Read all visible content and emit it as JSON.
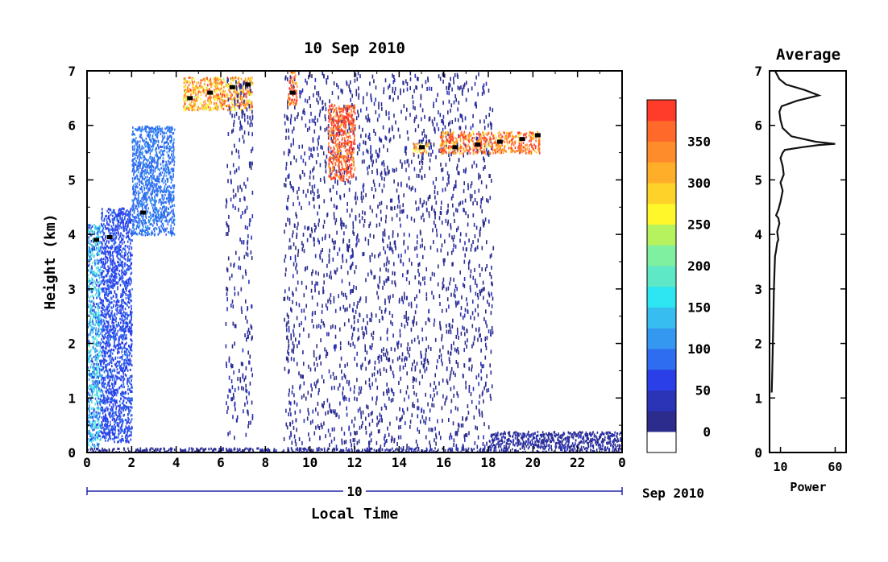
{
  "main_plot": {
    "title": "10 Sep 2010",
    "xlabel": "Local Time",
    "ylabel": "Height (km)",
    "x_ticks": [
      "0",
      "2",
      "4",
      "6",
      "8",
      "10",
      "12",
      "14",
      "16",
      "18",
      "20",
      "22",
      "0"
    ],
    "y_ticks": [
      "0",
      "1",
      "2",
      "3",
      "4",
      "5",
      "6",
      "7"
    ],
    "day_label": "10",
    "date_label": "Sep 2010"
  },
  "colorbar": {
    "labels": [
      "0",
      "50",
      "100",
      "150",
      "200",
      "250",
      "300",
      "350"
    ],
    "colors": [
      "#2b2c8c",
      "#2b33b7",
      "#2a3fe8",
      "#2f6df0",
      "#3497f0",
      "#38bdf0",
      "#2de6f2",
      "#5fe8c6",
      "#7ff0a0",
      "#b6f25e",
      "#fff72a",
      "#ffd22a",
      "#ffae2a",
      "#ff8c2a",
      "#ff6a2a",
      "#ff3c2a"
    ]
  },
  "avg_plot": {
    "title": "Average",
    "xlabel": "Power",
    "x_ticks": [
      "10",
      "60"
    ],
    "y_ticks": [
      "0",
      "1",
      "2",
      "3",
      "4",
      "5",
      "6",
      "7"
    ]
  },
  "chart_data": [
    {
      "type": "heatmap",
      "title": "10 Sep 2010",
      "xlabel": "Local Time",
      "ylabel": "Height (km)",
      "xlim": [
        0,
        24
      ],
      "ylim": [
        0,
        7
      ],
      "colorbar_range": [
        0,
        380
      ],
      "features": [
        {
          "x": [
            0,
            0.6
          ],
          "y": [
            0.1,
            4.2
          ],
          "value": 120
        },
        {
          "x": [
            0.6,
            2.0
          ],
          "y": [
            0.2,
            4.5
          ],
          "value": 60
        },
        {
          "x": [
            2.0,
            3.9
          ],
          "y": [
            4.0,
            6.0
          ],
          "value": 80
        },
        {
          "x": [
            4.3,
            7.4
          ],
          "y": [
            6.3,
            6.9
          ],
          "value": 300
        },
        {
          "x": [
            6.2,
            7.4
          ],
          "y": [
            0.3,
            6.9
          ],
          "value": 15
        },
        {
          "x": [
            8.8,
            18.2
          ],
          "y": [
            0.1,
            7.0
          ],
          "value": 10
        },
        {
          "x": [
            9.0,
            9.4
          ],
          "y": [
            6.4,
            7.0
          ],
          "value": 350
        },
        {
          "x": [
            10.8,
            12.0
          ],
          "y": [
            5.0,
            6.4
          ],
          "value": 360
        },
        {
          "x": [
            14.6,
            15.3
          ],
          "y": [
            5.5,
            5.7
          ],
          "value": 300
        },
        {
          "x": [
            15.8,
            20.3
          ],
          "y": [
            5.5,
            5.9
          ],
          "value": 330
        },
        {
          "x": [
            18.0,
            24.0
          ],
          "y": [
            0.0,
            0.4
          ],
          "value": 15
        },
        {
          "x": [
            0.0,
            18.0
          ],
          "y": [
            0.0,
            0.1
          ],
          "value": 15
        }
      ],
      "cloud_base_markers": [
        {
          "x": 0.4,
          "y": 3.9
        },
        {
          "x": 1.0,
          "y": 3.95
        },
        {
          "x": 2.5,
          "y": 4.4
        },
        {
          "x": 4.6,
          "y": 6.5
        },
        {
          "x": 5.5,
          "y": 6.6
        },
        {
          "x": 6.5,
          "y": 6.7
        },
        {
          "x": 7.2,
          "y": 6.75
        },
        {
          "x": 9.2,
          "y": 6.6
        },
        {
          "x": 15.0,
          "y": 5.6
        },
        {
          "x": 16.5,
          "y": 5.6
        },
        {
          "x": 17.5,
          "y": 5.65
        },
        {
          "x": 18.5,
          "y": 5.7
        },
        {
          "x": 19.5,
          "y": 5.75
        },
        {
          "x": 20.2,
          "y": 5.82
        }
      ]
    },
    {
      "type": "line",
      "title": "Average",
      "xlabel": "Power",
      "ylim": [
        0,
        7
      ],
      "xlim": [
        0,
        70
      ],
      "x": [
        2,
        2.5,
        3,
        3.5,
        4,
        4.5,
        5,
        6,
        7,
        8,
        7,
        9,
        8,
        6,
        8,
        10,
        12,
        10,
        13,
        12,
        10,
        12,
        14,
        30,
        45,
        60,
        42,
        20,
        12,
        10,
        9,
        11,
        25,
        45,
        32,
        15,
        9,
        5
      ],
      "y": [
        1.1,
        1.5,
        2.0,
        2.5,
        3.0,
        3.3,
        3.6,
        3.7,
        3.85,
        3.9,
        4.05,
        4.2,
        4.3,
        4.35,
        4.45,
        4.6,
        4.8,
        4.95,
        5.1,
        5.25,
        5.4,
        5.5,
        5.55,
        5.6,
        5.64,
        5.66,
        5.7,
        5.8,
        5.95,
        6.1,
        6.25,
        6.35,
        6.45,
        6.55,
        6.65,
        6.75,
        6.85,
        7.0
      ]
    }
  ]
}
